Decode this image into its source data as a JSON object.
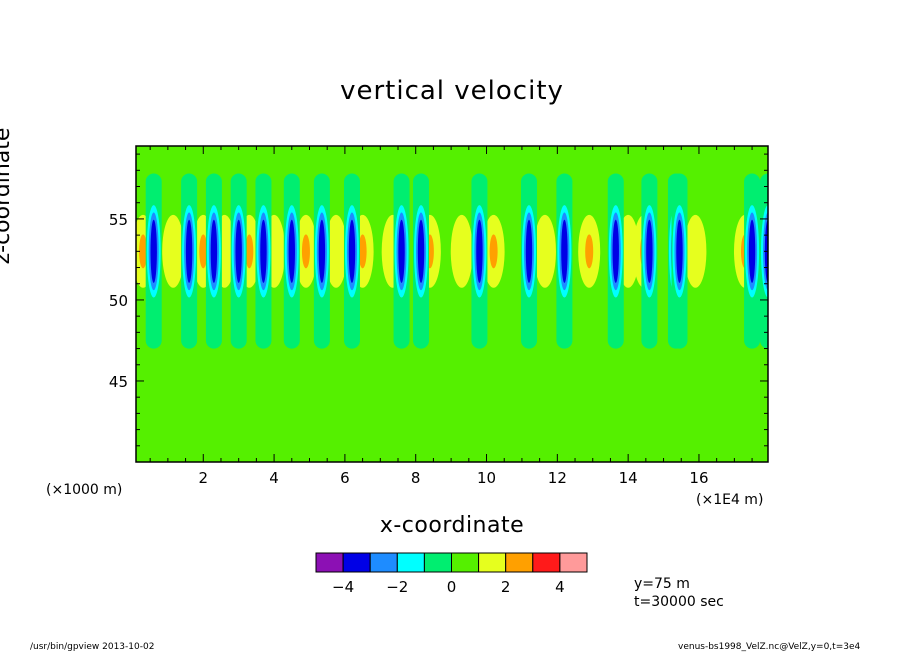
{
  "chart_data": {
    "type": "heatmap",
    "title": "vertical velocity",
    "xlabel": "x-coordinate",
    "ylabel": "z-coordinate",
    "x_multiplier": "(×1000 m)",
    "x_unit": "(×1E4 m)",
    "xlim": [
      0.1,
      17.95
    ],
    "ylim": [
      40,
      59.5
    ],
    "x_ticks": [
      "2",
      "4",
      "6",
      "8",
      "10",
      "12",
      "14",
      "16"
    ],
    "y_ticks": [
      "45",
      "50",
      "55"
    ],
    "colorbar": {
      "colors": [
        "#8c10b4",
        "#0000e6",
        "#1e8cff",
        "#00ffff",
        "#00ee70",
        "#55f000",
        "#e6ff1e",
        "#ffa000",
        "#ff1a1a",
        "#ff9a9a"
      ],
      "tick_labels": [
        "−4",
        "−2",
        "0",
        "2",
        "4"
      ]
    },
    "background_color": "#55f000",
    "updraft_columns_x": [
      0.3,
      1.15,
      2.0,
      2.6,
      3.3,
      4.0,
      4.9,
      5.75,
      6.5,
      7.35,
      8.4,
      9.3,
      10.2,
      11.65,
      12.9,
      14.0,
      14.45,
      15.9,
      17.3
    ],
    "downdraft_columns_x": [
      0.6,
      1.6,
      2.3,
      3.0,
      3.7,
      4.5,
      5.35,
      6.2,
      7.6,
      8.15,
      9.8,
      11.2,
      12.2,
      13.65,
      14.6,
      15.35,
      15.45,
      17.5,
      17.95
    ],
    "core_z": [
      51.5,
      54.5
    ]
  },
  "annotations": {
    "y_value": "y=75 m",
    "t_value": "t=30000 sec"
  },
  "footer": {
    "left": "/usr/bin/gpview  2013-10-02",
    "right": "venus-bs1998_VelZ.nc@VelZ,y=0,t=3e4"
  }
}
